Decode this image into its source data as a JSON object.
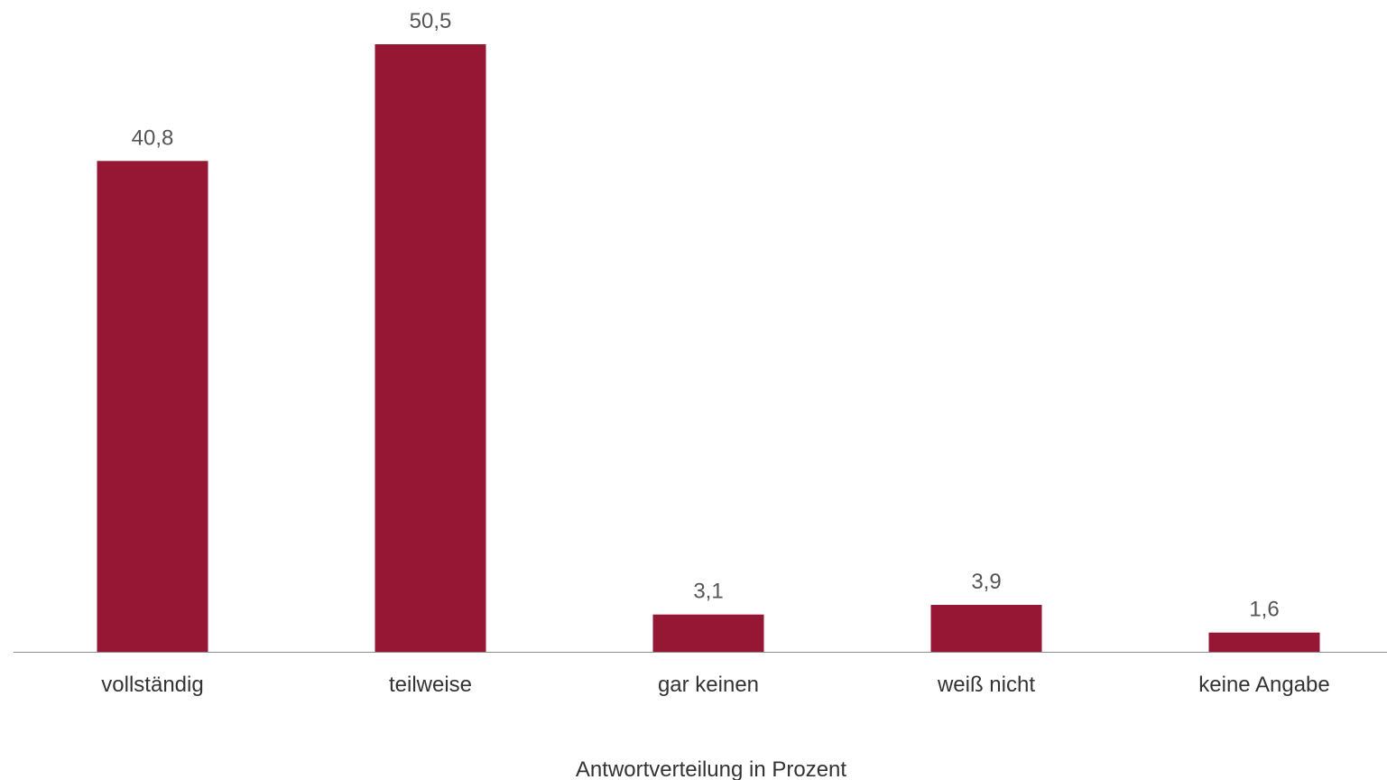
{
  "chart_data": {
    "type": "bar",
    "categories": [
      "vollständig",
      "teilweise",
      "gar keinen",
      "weiß nicht",
      "keine Angabe"
    ],
    "values": [
      40.8,
      50.5,
      3.1,
      3.9,
      1.6
    ],
    "value_labels": [
      "40,8",
      "50,5",
      "3,1",
      "3,9",
      "1,6"
    ],
    "xlabel": "Antwortverteilung in Prozent",
    "ylim": [
      0,
      50.5
    ],
    "grid": false,
    "legend": "none",
    "bar_color": "#951734"
  }
}
